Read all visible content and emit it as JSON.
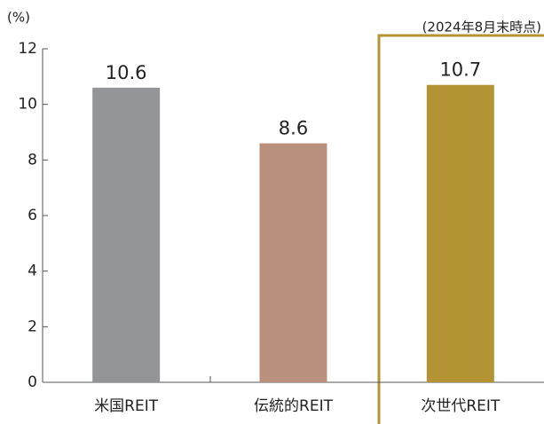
{
  "chart_data": {
    "type": "bar",
    "unit_label": "(%)",
    "note": "(2024年8月末時点)",
    "categories": [
      "米国REIT",
      "伝統的REIT",
      "次世代REIT"
    ],
    "values": [
      10.6,
      8.6,
      10.7
    ],
    "colors": [
      "#929497",
      "#b8907d",
      "#b39334"
    ],
    "ylim": [
      0,
      12
    ],
    "yticks": [
      0,
      2,
      4,
      6,
      8,
      10,
      12
    ]
  }
}
